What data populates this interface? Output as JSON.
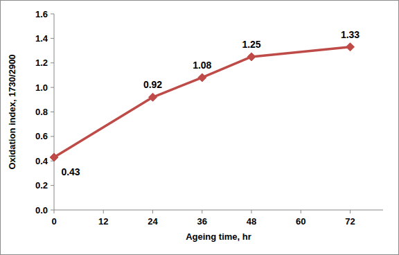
{
  "chart_data": {
    "type": "line",
    "x_label": "Ageing time, hr",
    "y_label": "Oxidation index, 1730/2900",
    "x": [
      0,
      24,
      36,
      48,
      72
    ],
    "series": [
      {
        "name": "Oxidation index",
        "color": "#be4b48",
        "marker": "diamond",
        "line_style": "solid",
        "values": [
          0.43,
          0.92,
          1.08,
          1.25,
          1.33
        ]
      }
    ],
    "xlim": [
      0,
      80
    ],
    "xticks": [
      0,
      12,
      24,
      36,
      48,
      60,
      72
    ],
    "ylim": [
      0,
      1.6
    ],
    "yticks": [
      {
        "value": 0,
        "label": "0.0"
      },
      {
        "value": 0.2,
        "label": "0.2"
      },
      {
        "value": 0.4,
        "label": "0.4"
      },
      {
        "value": 0.6,
        "label": "0.6"
      },
      {
        "value": 0.8,
        "label": "0.8"
      },
      {
        "value": 1.0,
        "label": "1.0"
      },
      {
        "value": 1.2,
        "label": "1.2"
      },
      {
        "value": 1.4,
        "label": "1.4"
      },
      {
        "value": 1.6,
        "label": "1.6"
      }
    ],
    "grid": false,
    "data_labels": true
  }
}
